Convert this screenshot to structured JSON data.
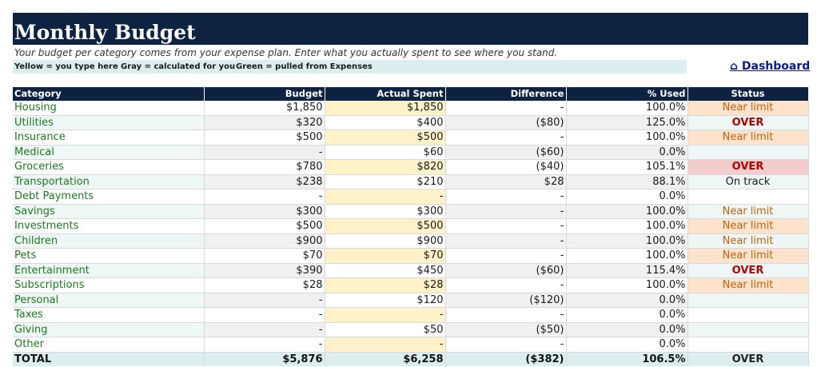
{
  "sheet": {
    "title": "Monthly Budget",
    "subtitle": "Your budget per category comes from your expense plan. Enter what you actually spent to see where you stand.",
    "legend": [
      "Yellow = you type here",
      "Gray = calculated for you",
      "Green = pulled from Expenses"
    ],
    "dashboard_link": "⌂ Dashboard"
  },
  "table": {
    "headers": [
      "Category",
      "Budget",
      "Actual Spent",
      "Difference",
      "% Used",
      "Status"
    ],
    "rows": [
      {
        "category": "Housing",
        "budget": "$1,850",
        "actual": "$1,850",
        "difference": "-",
        "pct": "100.0%",
        "status": "Near limit"
      },
      {
        "category": "Utilities",
        "budget": "$320",
        "actual": "$400",
        "difference": "($80)",
        "pct": "125.0%",
        "status": "OVER"
      },
      {
        "category": "Insurance",
        "budget": "$500",
        "actual": "$500",
        "difference": "-",
        "pct": "100.0%",
        "status": "Near limit"
      },
      {
        "category": "Medical",
        "budget": "-",
        "actual": "$60",
        "difference": "($60)",
        "pct": "0.0%",
        "status": ""
      },
      {
        "category": "Groceries",
        "budget": "$780",
        "actual": "$820",
        "difference": "($40)",
        "pct": "105.1%",
        "status": "OVER"
      },
      {
        "category": "Transportation",
        "budget": "$238",
        "actual": "$210",
        "difference": "$28",
        "pct": "88.1%",
        "status": "On track"
      },
      {
        "category": "Debt Payments",
        "budget": "-",
        "actual": "-",
        "difference": "-",
        "pct": "0.0%",
        "status": ""
      },
      {
        "category": "Savings",
        "budget": "$300",
        "actual": "$300",
        "difference": "-",
        "pct": "100.0%",
        "status": "Near limit"
      },
      {
        "category": "Investments",
        "budget": "$500",
        "actual": "$500",
        "difference": "-",
        "pct": "100.0%",
        "status": "Near limit"
      },
      {
        "category": "Children",
        "budget": "$900",
        "actual": "$900",
        "difference": "-",
        "pct": "100.0%",
        "status": "Near limit"
      },
      {
        "category": "Pets",
        "budget": "$70",
        "actual": "$70",
        "difference": "-",
        "pct": "100.0%",
        "status": "Near limit"
      },
      {
        "category": "Entertainment",
        "budget": "$390",
        "actual": "$450",
        "difference": "($60)",
        "pct": "115.4%",
        "status": "OVER"
      },
      {
        "category": "Subscriptions",
        "budget": "$28",
        "actual": "$28",
        "difference": "-",
        "pct": "100.0%",
        "status": "Near limit"
      },
      {
        "category": "Personal",
        "budget": "-",
        "actual": "$120",
        "difference": "($120)",
        "pct": "0.0%",
        "status": ""
      },
      {
        "category": "Taxes",
        "budget": "-",
        "actual": "-",
        "difference": "-",
        "pct": "0.0%",
        "status": ""
      },
      {
        "category": "Giving",
        "budget": "-",
        "actual": "$50",
        "difference": "($50)",
        "pct": "0.0%",
        "status": ""
      },
      {
        "category": "Other",
        "budget": "-",
        "actual": "-",
        "difference": "-",
        "pct": "0.0%",
        "status": ""
      }
    ],
    "total": {
      "category": "TOTAL",
      "budget": "$5,876",
      "actual": "$6,258",
      "difference": "($382)",
      "pct": "106.5%",
      "status": "OVER"
    }
  },
  "colors": {
    "header_navy": "#0e2241",
    "input_yellow": "#fff2c8",
    "calc_gray": "#f0f0f0",
    "link_teal": "#eef7f6",
    "near_limit_bg": "#fde3cc",
    "over_bg": "#f3cccc",
    "category_green": "#1b7a1b"
  }
}
